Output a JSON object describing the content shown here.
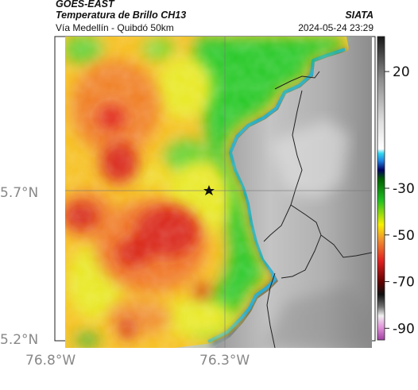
{
  "header": {
    "satellite": "GOES-EAST",
    "product": "Temperatura de Brillo CH13",
    "region": "Vía Medellín - Quibdó 50km",
    "agency": "SIATA",
    "datetime": "2024-05-24 23:29"
  },
  "axes": {
    "lat_labels": [
      "5.7°N",
      "5.2°N"
    ],
    "lon_labels": [
      "76.8°W",
      "76.3°W"
    ]
  },
  "marker": {
    "icon": "star-icon"
  },
  "colorbar": {
    "ticks": [
      "20",
      "-30",
      "-50",
      "-70",
      "-90"
    ],
    "tick_values": [
      20,
      -30,
      -50,
      -70,
      -90
    ],
    "range": [
      -95,
      35
    ]
  },
  "colors": {
    "cold_magenta": "#c040a0",
    "deep_red": "#d42018",
    "orange": "#f07828",
    "yellow": "#e8e820",
    "green": "#22c020",
    "cyan": "#18c0d8",
    "navy": "#0a1a6a",
    "warm_gray": "#a0a0a0"
  }
}
